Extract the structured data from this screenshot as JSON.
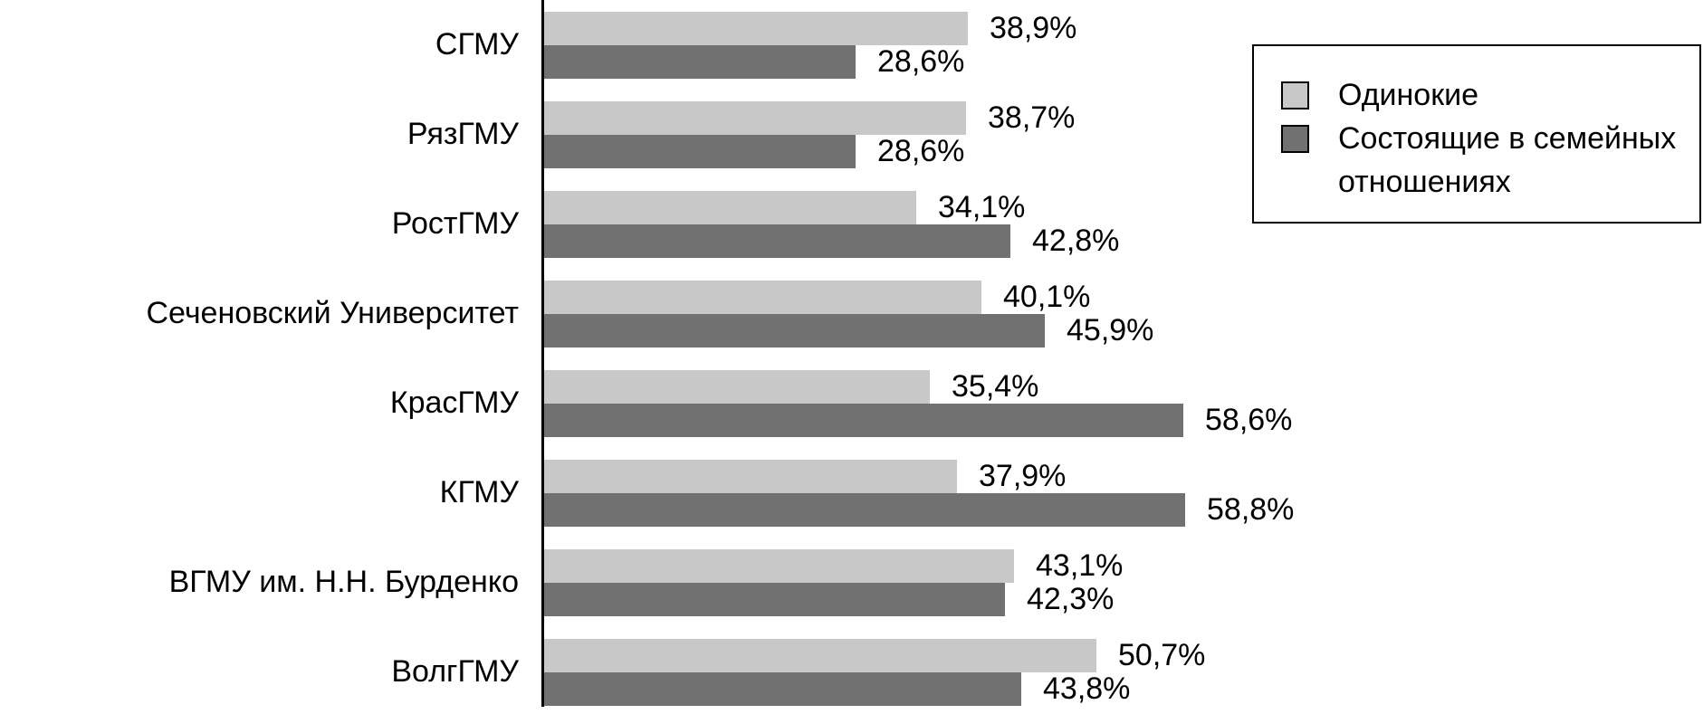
{
  "chart_data": {
    "type": "bar",
    "orientation": "horizontal",
    "title": "",
    "xlabel": "",
    "ylabel": "",
    "xlim": [
      0,
      62
    ],
    "grid": false,
    "legend_position": "top-right",
    "value_format": "percent with comma decimal",
    "categories": [
      "СГМУ",
      "РязГМУ",
      "РостГМУ",
      "Сеченовский Университет",
      "КрасГМУ",
      "КГМУ",
      "ВГМУ им. Н.Н. Бурденко",
      "ВолгГМУ"
    ],
    "series": [
      {
        "name": "Одинокие",
        "color": "#c8c8c8",
        "values": [
          38.9,
          38.7,
          34.1,
          40.1,
          35.4,
          37.9,
          43.1,
          50.7
        ],
        "labels": [
          "38,9%",
          "38,7%",
          "34,1%",
          "40,1%",
          "35,4%",
          "37,9%",
          "43,1%",
          "50,7%"
        ]
      },
      {
        "name": "Состоящие в семейных отношениях",
        "color": "#717171",
        "values": [
          28.6,
          28.6,
          42.8,
          45.9,
          58.6,
          58.8,
          42.3,
          43.8
        ],
        "labels": [
          "28,6%",
          "28,6%",
          "42,8%",
          "45,9%",
          "58,6%",
          "58,8%",
          "42,3%",
          "43,8%"
        ]
      }
    ]
  },
  "colors": {
    "background": "#ffffff",
    "axis": "#000000",
    "text": "#000000",
    "legend_border": "#000000"
  }
}
